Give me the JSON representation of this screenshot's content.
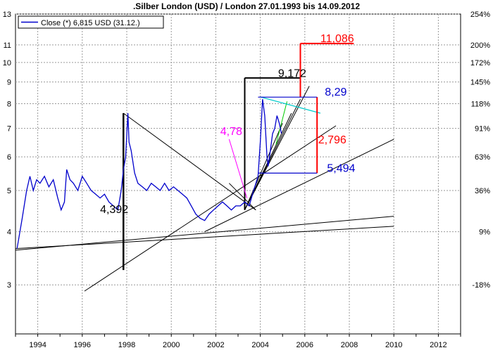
{
  "chart_data": {
    "type": "line",
    "title": ".Silber London (USD) / London 27.01.1993 bis 14.09.2012",
    "xlabel": "",
    "ylabel": "",
    "y_scale": "log",
    "xlim": [
      1993.0,
      2013.0
    ],
    "ylim": [
      2.3,
      13
    ],
    "x_ticks": [
      "1994",
      "1996",
      "1998",
      "2000",
      "2002",
      "2004",
      "2006",
      "2008",
      "2010",
      "2012"
    ],
    "y_ticks_left": [
      "3",
      "4",
      "5",
      "6",
      "7",
      "8",
      "9",
      "10",
      "11",
      "13"
    ],
    "y_ticks_right": [
      {
        "label": "254%",
        "value": 13.0
      },
      {
        "label": "200%",
        "value": 11.0
      },
      {
        "label": "172%",
        "value": 10.0
      },
      {
        "label": "145%",
        "value": 9.0
      },
      {
        "label": "118%",
        "value": 8.0
      },
      {
        "label": "91%",
        "value": 7.0
      },
      {
        "label": "63%",
        "value": 6.0
      },
      {
        "label": "36%",
        "value": 5.0
      },
      {
        "label": "9%",
        "value": 4.0
      },
      {
        "label": "-18%",
        "value": 3.0
      }
    ],
    "grid": true,
    "legend": {
      "position": "top-left",
      "entries": [
        "Close (*) 6,815 USD (31.12.)"
      ]
    },
    "series": [
      {
        "name": "Close (*) 6,815 USD (31.12.)",
        "color": "#0000cc",
        "x": [
          1993.07,
          1993.3,
          1993.5,
          1993.65,
          1993.8,
          1993.95,
          1994.1,
          1994.3,
          1994.5,
          1994.7,
          1994.9,
          1995.05,
          1995.2,
          1995.3,
          1995.45,
          1995.6,
          1995.8,
          1996.0,
          1996.2,
          1996.4,
          1996.6,
          1996.8,
          1997.0,
          1997.2,
          1997.4,
          1997.6,
          1997.75,
          1997.85,
          1997.95,
          1998.05,
          1998.1,
          1998.2,
          1998.35,
          1998.5,
          1998.7,
          1998.9,
          1999.1,
          1999.3,
          1999.5,
          1999.7,
          1999.9,
          2000.1,
          2000.3,
          2000.5,
          2000.7,
          2000.9,
          2001.1,
          2001.3,
          2001.5,
          2001.7,
          2001.9,
          2002.1,
          2002.3,
          2002.5,
          2002.7,
          2002.9,
          2003.1,
          2003.3,
          2003.5,
          2003.7,
          2003.9,
          2004.0,
          2004.1,
          2004.2,
          2004.3,
          2004.35,
          2004.45,
          2004.55,
          2004.65,
          2004.75,
          2004.85,
          2004.95
        ],
        "values": [
          3.65,
          4.3,
          5.0,
          5.4,
          5.0,
          5.3,
          5.2,
          5.4,
          5.1,
          5.3,
          4.8,
          4.5,
          4.7,
          5.6,
          5.3,
          5.2,
          5.0,
          5.4,
          5.2,
          5.0,
          4.9,
          4.8,
          4.9,
          4.7,
          4.6,
          4.5,
          5.0,
          5.6,
          6.0,
          7.6,
          6.5,
          6.2,
          5.5,
          5.2,
          5.1,
          5.0,
          5.2,
          5.1,
          5.0,
          5.2,
          5.0,
          5.1,
          5.0,
          4.9,
          4.8,
          4.6,
          4.4,
          4.3,
          4.25,
          4.4,
          4.5,
          4.6,
          4.7,
          4.6,
          4.5,
          4.6,
          4.6,
          4.7,
          4.6,
          5.0,
          5.4,
          6.5,
          8.2,
          7.5,
          6.0,
          5.7,
          6.2,
          6.8,
          7.0,
          7.5,
          7.2,
          6.815
        ]
      }
    ],
    "annotations": [
      {
        "text": "11,086",
        "color": "#ff0000",
        "x": 2006.7,
        "y": 11.086
      },
      {
        "text": "9,172",
        "color": "#000000",
        "x": 2004.8,
        "y": 9.172
      },
      {
        "text": "8,29",
        "color": "#0000cc",
        "x": 2006.9,
        "y": 8.29
      },
      {
        "text": "2,796",
        "color": "#ff0000",
        "x": 2006.6,
        "y": 6.4
      },
      {
        "text": "5,494",
        "color": "#0000cc",
        "x": 2007.0,
        "y": 5.494
      },
      {
        "text": "4,78",
        "color": "#ff00ff",
        "x": 2002.2,
        "y": 6.7
      },
      {
        "text": "4,392",
        "color": "#000000",
        "x": 1996.8,
        "y": 4.392
      }
    ]
  }
}
